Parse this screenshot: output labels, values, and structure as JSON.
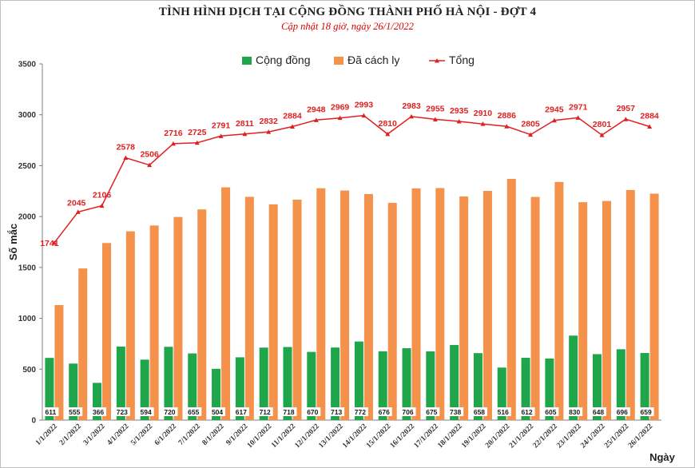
{
  "chart_data": {
    "type": "bar",
    "title": "TÌNH HÌNH DỊCH TẠI CỘNG ĐỒNG THÀNH PHỐ HÀ NỘI - ĐỢT 4",
    "subtitle": "Cập nhật 18 giờ, ngày  26/1/2022",
    "xlabel": "Ngày",
    "ylabel": "Số mắc",
    "ylim": [
      0,
      3500
    ],
    "yticks": [
      0,
      500,
      1000,
      1500,
      2000,
      2500,
      3000,
      3500
    ],
    "grid": false,
    "legend_position": "top-center",
    "categories": [
      "1/1/2022",
      "2/1/2022",
      "3/1/2022",
      "4/1/2022",
      "5/1/2022",
      "6/1/2022",
      "7/1/2022",
      "8/1/2022",
      "9/1/2022",
      "10/1/2022",
      "11/1/2022",
      "12/1/2022",
      "13/1/2022",
      "14/1/2022",
      "15/1/2022",
      "16/1/2022",
      "17/1/2022",
      "18/1/2022",
      "19/1/2022",
      "20/1/2022",
      "21/1/2022",
      "22/1/2022",
      "23/1/2022",
      "24/1/2022",
      "25/1/2022",
      "26/1/2022"
    ],
    "series": [
      {
        "name": "Cộng đồng",
        "type": "bar",
        "color": "#1fa64a",
        "values": [
          611,
          555,
          366,
          723,
          594,
          720,
          655,
          504,
          617,
          712,
          718,
          670,
          713,
          772,
          676,
          706,
          675,
          738,
          658,
          516,
          612,
          605,
          830,
          648,
          696,
          659
        ]
      },
      {
        "name": "Đã cách ly",
        "type": "bar",
        "color": "#f4914a",
        "values": [
          1130,
          1490,
          1740,
          1855,
          1912,
          1996,
          2070,
          2287,
          2194,
          2120,
          2166,
          2278,
          2256,
          2221,
          2134,
          2277,
          2280,
          2197,
          2252,
          2370,
          2193,
          2340,
          2141,
          2153,
          2261,
          2225
        ]
      },
      {
        "name": "Tổng",
        "type": "line",
        "color": "#e02020",
        "values": [
          1741,
          2045,
          2106,
          2578,
          2506,
          2716,
          2725,
          2791,
          2811,
          2832,
          2884,
          2948,
          2969,
          2993,
          2810,
          2983,
          2955,
          2935,
          2910,
          2886,
          2805,
          2945,
          2971,
          2801,
          2957,
          2884
        ]
      }
    ]
  }
}
